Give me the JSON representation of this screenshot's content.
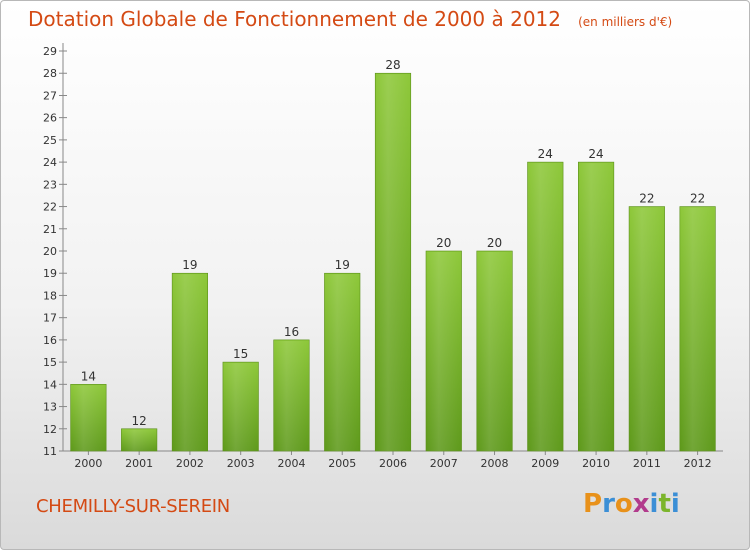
{
  "chart_data": {
    "type": "bar",
    "title": "Dotation Globale de Fonctionnement de 2000 à 2012",
    "unit": "(en milliers d'€)",
    "categories": [
      "2000",
      "2001",
      "2002",
      "2003",
      "2004",
      "2005",
      "2006",
      "2007",
      "2008",
      "2009",
      "2010",
      "2011",
      "2012"
    ],
    "values": [
      14,
      12,
      19,
      15,
      16,
      19,
      28,
      20,
      20,
      24,
      24,
      22,
      22
    ],
    "ylim": [
      11,
      29
    ],
    "yticks": [
      "11",
      "12",
      "13",
      "14",
      "15",
      "16",
      "17",
      "18",
      "19",
      "20",
      "21",
      "22",
      "23",
      "24",
      "25",
      "26",
      "27",
      "28",
      "29"
    ],
    "grid": false,
    "bar_color": "#7cb52c"
  },
  "footer": {
    "city": "CHEMILLY-SUR-SEREIN",
    "logo": [
      "P",
      "r",
      "o",
      "x",
      "i",
      "t",
      "i"
    ],
    "logo_colors": [
      "#e8911a",
      "#3b8fd6",
      "#e8911a",
      "#b23b8c",
      "#3b8fd6",
      "#7cb52c",
      "#3b8fd6"
    ]
  }
}
